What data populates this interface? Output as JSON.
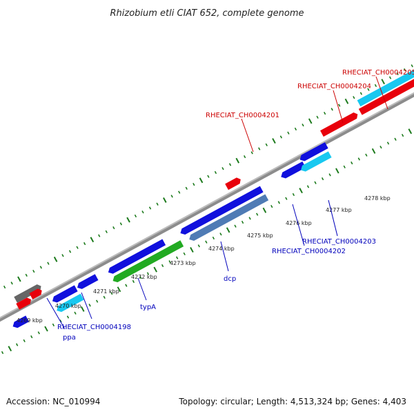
{
  "title": "Rhizobium etli CIAT 652, complete genome",
  "footer": {
    "accession": "Accession: NC_010994",
    "summary": "Topology: circular; Length: 4,513,324 bp; Genes: 4,403"
  },
  "ruler_labels": [
    "4269 kbp",
    "4270 kbp",
    "4271 kbp",
    "4272 kbp",
    "4273 kbp",
    "4274 kbp",
    "4275 kbp",
    "4276 kbp",
    "4277 kbp",
    "4278 kbp"
  ],
  "gene_labels": {
    "ch4205": "RHECIAT_CH0004205",
    "ch4204": "RHECIAT_CH0004204",
    "ch4201": "RHECIAT_CH0004201",
    "ch4203": "RHECIAT_CH0004203",
    "ch4202": "RHECIAT_CH0004202",
    "dcp": "dcp",
    "typA": "typA",
    "ch4198": "RHECIAT_CH0004198",
    "ppa": "ppa"
  },
  "colors": {
    "forward_other": "#e8000b",
    "reverse_blue": "#1010dd",
    "reverse_cyan": "#18c8f0",
    "green": "#22aa22",
    "steel": "#4f7bb5",
    "gray": "#666666",
    "backbone": "#8c8c8c",
    "tick": "#1c7a1c",
    "label_red": "#cc0000",
    "label_blue": "#0000bb"
  }
}
